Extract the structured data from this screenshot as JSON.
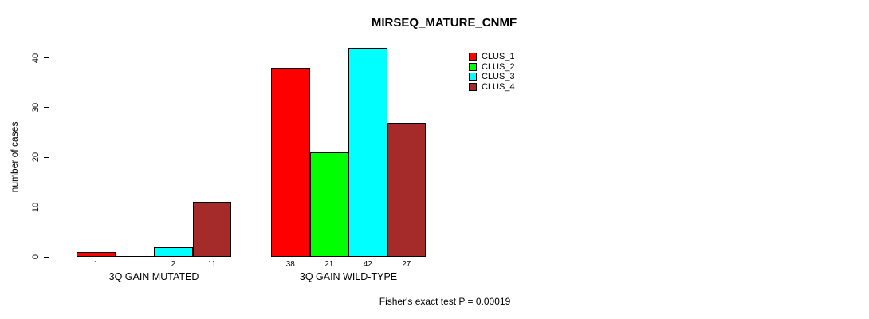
{
  "chart_data": {
    "type": "bar",
    "title": "MIRSEQ_MATURE_CNMF",
    "ylabel": "number of cases",
    "xlabel": "",
    "ylim": [
      0,
      42
    ],
    "yticks": [
      0,
      10,
      20,
      30,
      40
    ],
    "grid": false,
    "legend_position": "topright",
    "categories": [
      "3Q GAIN MUTATED",
      "3Q GAIN WILD-TYPE"
    ],
    "series": [
      {
        "name": "CLUS_1",
        "color": "#ff0000",
        "values": [
          1,
          38
        ]
      },
      {
        "name": "CLUS_2",
        "color": "#00ff00",
        "values": [
          0,
          21
        ]
      },
      {
        "name": "CLUS_3",
        "color": "#00ffff",
        "values": [
          2,
          42
        ]
      },
      {
        "name": "CLUS_4",
        "color": "#a52a2a",
        "values": [
          11,
          27
        ]
      }
    ],
    "bar_count_labels": [
      [
        "1",
        "",
        "2",
        "11"
      ],
      [
        "38",
        "21",
        "42",
        "27"
      ]
    ],
    "footer": "Fisher's exact test P = 0.00019"
  }
}
